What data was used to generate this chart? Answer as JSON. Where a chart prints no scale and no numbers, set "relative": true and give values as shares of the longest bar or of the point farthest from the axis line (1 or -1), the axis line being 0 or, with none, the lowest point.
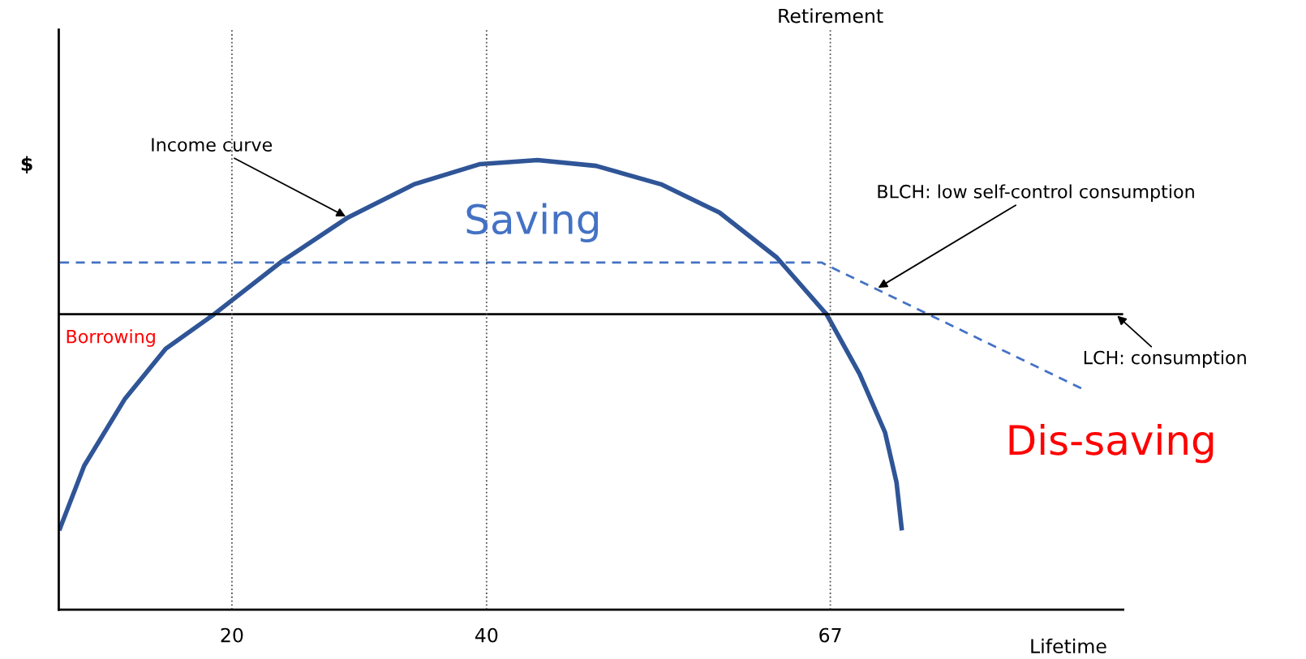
{
  "chart_data": {
    "type": "line",
    "relative": true,
    "xlabel": "Lifetime",
    "ylabel": "$",
    "xlim": [
      6.4,
      90
    ],
    "xticks": [
      20,
      40,
      67
    ],
    "tick_labels": "x",
    "grid": false,
    "legend": false,
    "marker": "none",
    "series": [
      {
        "color": "#2f5597",
        "line_style": "solid",
        "x": [
          6.5,
          8.4,
          11.6,
          14.8,
          18.6,
          23.9,
          29.1,
          34.3,
          39.5,
          44.0,
          48.6,
          53.7,
          58.3,
          62.8,
          66.7,
          69.3,
          71.3,
          72.2,
          72.6
        ],
        "values": [
          0.181,
          0.32,
          0.469,
          0.58,
          0.657,
          0.774,
          0.872,
          0.946,
          0.991,
          1.0,
          0.987,
          0.946,
          0.883,
          0.783,
          0.657,
          0.524,
          0.394,
          0.283,
          0.181
        ]
      },
      {
        "color": "#4472c4",
        "line_style": "dashed",
        "x": [
          6.5,
          66.3,
          86.8
        ],
        "values": [
          0.772,
          0.772,
          0.491
        ]
      },
      {
        "color": "#000000",
        "line_style": "solid",
        "x": [
          6.4,
          90
        ],
        "values": [
          0.657,
          0.657
        ]
      }
    ],
    "ref_lines": [
      {
        "axis": "x",
        "value": 20,
        "color": "#555555",
        "line_style": "dotted"
      },
      {
        "axis": "x",
        "value": 40,
        "color": "#555555",
        "line_style": "dotted"
      },
      {
        "axis": "x",
        "value": 67,
        "label": "Retirement",
        "color": "#555555",
        "line_style": "dotted"
      }
    ],
    "annotations": [
      {
        "text": "Income curve",
        "x": 29.1,
        "y": 0.872
      },
      "Saving",
      {
        "text": "BLCH: low self-control consumption",
        "x": 70.6,
        "y": 0.713
      },
      {
        "text": "LCH: consumption",
        "x": 89.4,
        "y": 0.657
      },
      "Borrowing",
      "Dis-saving"
    ]
  }
}
